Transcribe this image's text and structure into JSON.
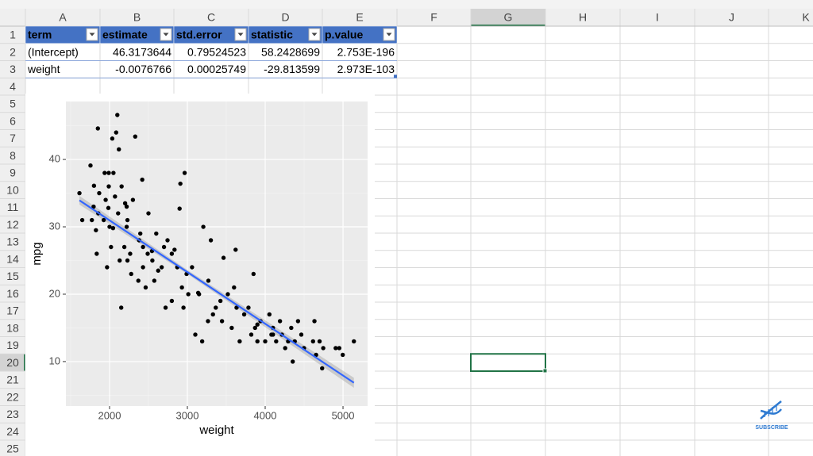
{
  "sheet": {
    "columns": [
      "A",
      "B",
      "C",
      "D",
      "E",
      "F",
      "G",
      "H",
      "I",
      "J",
      "K"
    ],
    "rows": [
      1,
      2,
      3,
      4,
      5,
      6,
      7,
      8,
      9,
      10,
      11,
      12,
      13,
      14,
      15,
      16,
      17,
      18,
      19,
      20,
      21,
      22,
      23,
      24,
      25
    ]
  },
  "table": {
    "header": [
      "term",
      "estimate",
      "std.error",
      "statistic",
      "p.value"
    ],
    "rows": [
      [
        "(Intercept)",
        "46.3173644",
        "0.79524523",
        "58.2428699",
        "2.753E-196"
      ],
      [
        "weight",
        "-0.0076766",
        "0.00025749",
        "-29.813599",
        "2.973E-103"
      ]
    ]
  },
  "chart_data": {
    "type": "scatter",
    "x_label": "weight",
    "y_label": "mpg",
    "xlim": [
      1439,
      5316
    ],
    "ylim": [
      3.4,
      48.6
    ],
    "xticks": [
      2000,
      3000,
      4000,
      5000
    ],
    "yticks": [
      10,
      20,
      30,
      40
    ],
    "minor_xticks": [
      1500,
      2500,
      3500,
      4500
    ],
    "minor_yticks": [
      5,
      15,
      25,
      35,
      45
    ],
    "grid": true,
    "color": "#000000",
    "x": [
      1613,
      1649,
      1755,
      1773,
      1795,
      1800,
      1825,
      1835,
      1850,
      1855,
      1867,
      1925,
      1937,
      1950,
      1968,
      1985,
      1990,
      2000,
      2019,
      2035,
      2045,
      2070,
      2085,
      2100,
      2110,
      2120,
      2130,
      2150,
      2155,
      2190,
      2200,
      2220,
      2230,
      2265,
      2278,
      2300,
      2330,
      2370,
      2380,
      2395,
      2420,
      2430,
      2464,
      2490,
      2500,
      2545,
      2575,
      2600,
      2625,
      2670,
      2720,
      2745,
      2800,
      2835,
      2870,
      2900,
      2910,
      2930,
      2950,
      2965,
      2990,
      3012,
      3060,
      3102,
      3139,
      3190,
      3205,
      3265,
      3270,
      3302,
      3329,
      3365,
      3425,
      3445,
      3465,
      3520,
      3570,
      3620,
      3632,
      3672,
      3730,
      3785,
      3821,
      3850,
      3870,
      3900,
      3940,
      4000,
      4054,
      4080,
      4100,
      4141,
      4190,
      4215,
      4257,
      4295,
      4335,
      4354,
      4380,
      4422,
      4464,
      4499,
      4615,
      4633,
      4654,
      4699,
      4732,
      4746,
      4906,
      4952,
      4997,
      5140,
      3150,
      2230,
      1990,
      2050,
      2220,
      2430,
      2550,
      3600,
      3900,
      4100,
      2700,
      2800
    ],
    "values": [
      35,
      31,
      39.1,
      31,
      33,
      36.1,
      29.5,
      26,
      44.6,
      32,
      35,
      31,
      38,
      34,
      24,
      32.8,
      38,
      30,
      27,
      43.1,
      29.8,
      34.5,
      44,
      46.6,
      32,
      41.5,
      25,
      18,
      36,
      27,
      33.5,
      30,
      25,
      26,
      23,
      34,
      43.4,
      22,
      28,
      29,
      37,
      24,
      21,
      26,
      32,
      26.4,
      22,
      29,
      23.5,
      24,
      18,
      28,
      19,
      26.6,
      24,
      32.7,
      36.4,
      21,
      18,
      38,
      23,
      20,
      24,
      14,
      20.2,
      13,
      30,
      16,
      22,
      28,
      17,
      18,
      19,
      16,
      25.4,
      20,
      15,
      26.6,
      18,
      13,
      17,
      18,
      14,
      23,
      15,
      13,
      16,
      13,
      17,
      14,
      15,
      13,
      16,
      14,
      12,
      13,
      15,
      10,
      13,
      16,
      14,
      12,
      13,
      16,
      11,
      13,
      9,
      12,
      12,
      12,
      11,
      13,
      20,
      31,
      36,
      38,
      33,
      27,
      25,
      21,
      15.5,
      14,
      27,
      26
    ],
    "fit": {
      "color": "#3366ff",
      "x": [
        1613,
        3000,
        5140
      ],
      "values": [
        33.93,
        23.29,
        6.86
      ],
      "lower": [
        33.3,
        23.0,
        6.1
      ],
      "upper": [
        34.6,
        23.6,
        7.6
      ]
    }
  },
  "logo": {
    "text": "SUBSCRIBE"
  }
}
